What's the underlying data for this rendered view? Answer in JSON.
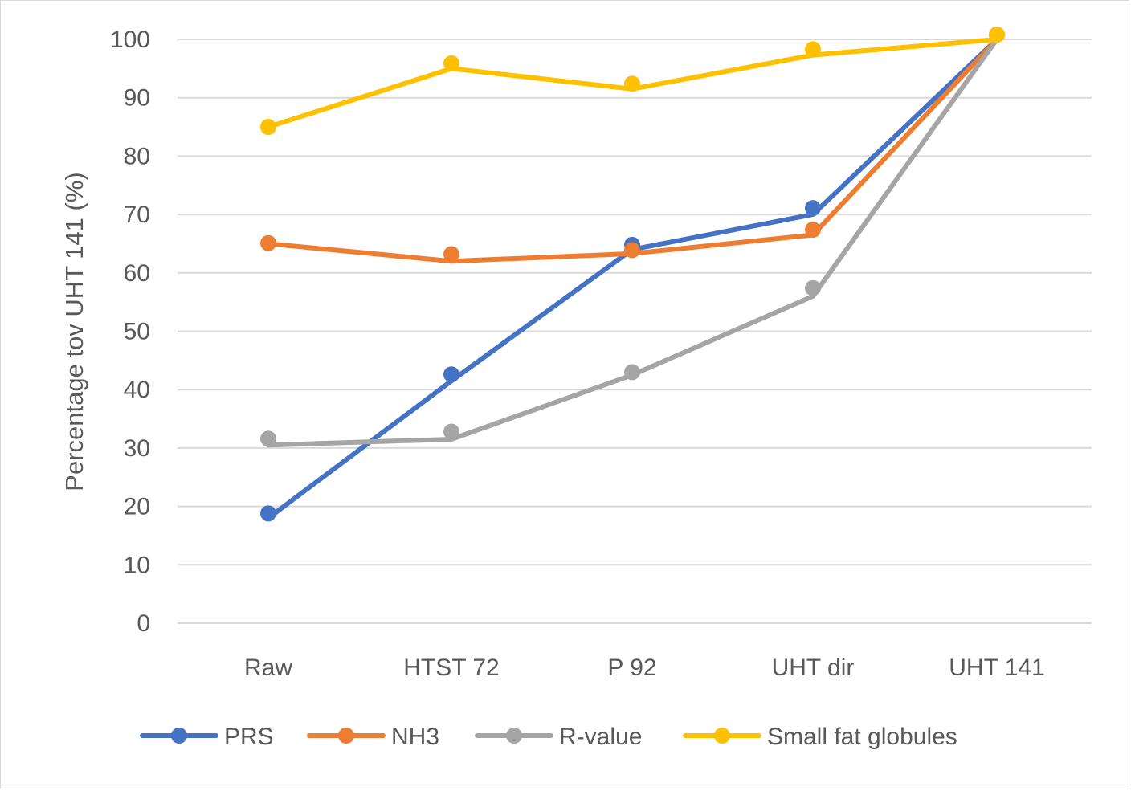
{
  "chart_data": {
    "type": "line",
    "categories": [
      "Raw",
      "HTST 72",
      "P 92",
      "UHT dir",
      "UHT 141"
    ],
    "ylabel": "Percentage tov UHT 141 (%)",
    "xlabel": "",
    "ylim": [
      0,
      100
    ],
    "yticks": [
      0,
      10,
      20,
      30,
      40,
      50,
      60,
      70,
      80,
      90,
      100
    ],
    "grid": true,
    "legend_position": "bottom",
    "series": [
      {
        "name": "PRS",
        "color": "#4472C4",
        "values": [
          18.8,
          42.6,
          64.8,
          71.1,
          100.8
        ]
      },
      {
        "name": "NH3",
        "color": "#ED7D31",
        "values": [
          65.1,
          63.2,
          63.9,
          67.4,
          100.8
        ]
      },
      {
        "name": "R-value",
        "color": "#A5A5A5",
        "values": [
          31.6,
          32.8,
          43.0,
          57.4,
          100.8
        ]
      },
      {
        "name": "Small fat globules",
        "color": "#FFC000",
        "values": [
          85.0,
          95.9,
          92.4,
          98.3,
          100.8
        ]
      }
    ],
    "trend_lines": [
      {
        "series": "PRS",
        "values": [
          18.0,
          41.5,
          64.0,
          70.0,
          100.0
        ]
      },
      {
        "series": "NH3",
        "values": [
          65.0,
          62.0,
          63.3,
          66.5,
          100.0
        ]
      },
      {
        "series": "R-value",
        "values": [
          30.5,
          31.5,
          42.5,
          56.0,
          100.0
        ]
      },
      {
        "series": "Small fat globules",
        "values": [
          85.0,
          95.0,
          91.5,
          97.3,
          100.0
        ]
      }
    ]
  }
}
